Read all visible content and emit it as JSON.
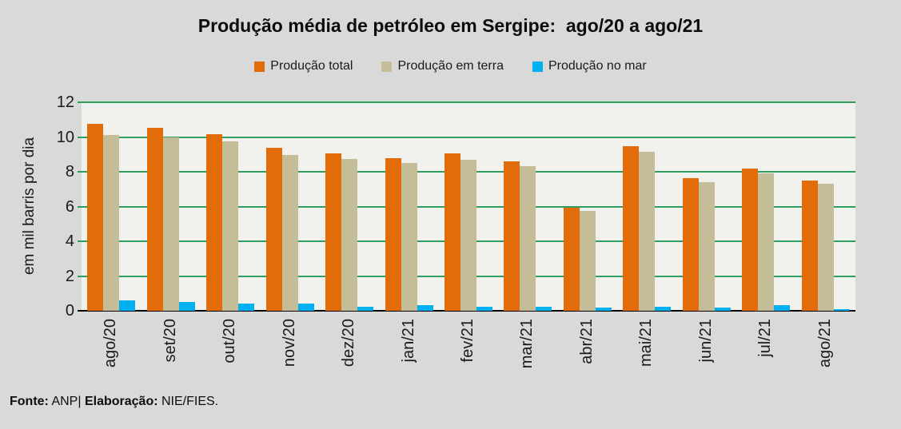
{
  "title": "Produção média de petróleo em Sergipe:  ago/20 a ago/21",
  "legend": [
    {
      "label": "Produção total",
      "color": "#E36C0A"
    },
    {
      "label": "Produção em terra",
      "color": "#C4BD97"
    },
    {
      "label": "Produção no mar",
      "color": "#00B0F0"
    }
  ],
  "footer": {
    "fonte_label": "Fonte:",
    "fonte_value": "ANP|",
    "elab_label": "Elaboração:",
    "elab_value": "NIE/FIES."
  },
  "chart_data": {
    "type": "bar",
    "title": "Produção média de petróleo em Sergipe:  ago/20 a ago/21",
    "xlabel": "",
    "ylabel": "em mil barris por dia",
    "ylim": [
      0,
      12
    ],
    "yticks": [
      0,
      2,
      4,
      6,
      8,
      10,
      12
    ],
    "grid": "horizontal",
    "gridline_color": "#2E9E5E",
    "plot_bg": "#F1F1ED",
    "outer_bg": "#D9D9D9",
    "legend_position": "top",
    "categories": [
      "ago/20",
      "set/20",
      "out/20",
      "nov/20",
      "dez/20",
      "jan/21",
      "fev/21",
      "mar/21",
      "abr/21",
      "mai/21",
      "jun/21",
      "jul/21",
      "ago/21"
    ],
    "series": [
      {
        "name": "Produção total",
        "color": "#E36C0A",
        "values": [
          10.75,
          10.55,
          10.15,
          9.4,
          9.05,
          8.8,
          9.05,
          8.6,
          5.95,
          9.45,
          7.65,
          8.2,
          7.5
        ]
      },
      {
        "name": "Produção em terra",
        "color": "#C4BD97",
        "values": [
          10.1,
          10.0,
          9.75,
          8.95,
          8.75,
          8.5,
          8.7,
          8.3,
          5.75,
          9.15,
          7.4,
          7.9,
          7.3
        ]
      },
      {
        "name": "Produção no mar",
        "color": "#00B0F0",
        "values": [
          0.6,
          0.5,
          0.4,
          0.4,
          0.25,
          0.3,
          0.25,
          0.25,
          0.2,
          0.25,
          0.2,
          0.3,
          0.1
        ]
      }
    ]
  }
}
